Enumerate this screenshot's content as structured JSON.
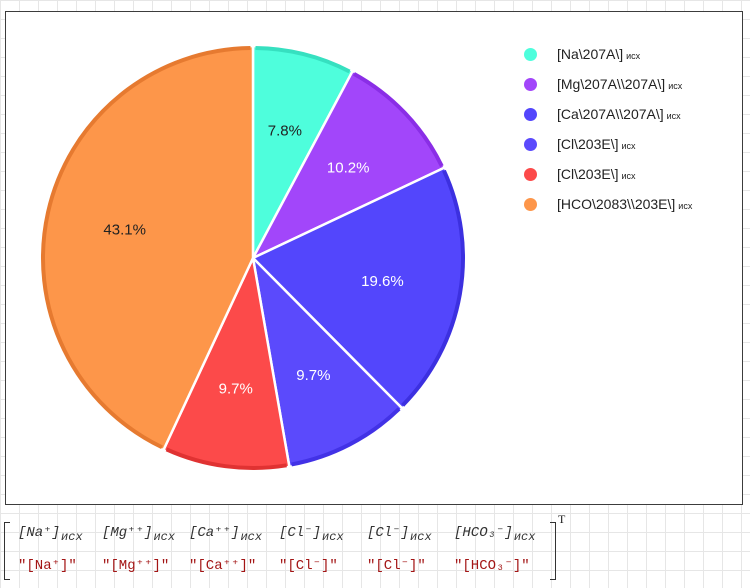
{
  "chart_data": {
    "type": "pie",
    "start": "12 o'clock",
    "direction": "clockwise",
    "slices": [
      {
        "legend": "[Na\\207A\\]",
        "sub": "исх",
        "value": 7.8,
        "label": "7.8%",
        "color": "#4efedc",
        "edge": "#36e0c0",
        "label_color": "#222222"
      },
      {
        "legend": "[Mg\\207A\\\\207A\\]",
        "sub": "исх",
        "value": 10.2,
        "label": "10.2%",
        "color": "#a246fa",
        "edge": "#8a2ee6",
        "label_color": "#ffffff"
      },
      {
        "legend": "[Ca\\207A\\\\207A\\]",
        "sub": "исх",
        "value": 19.6,
        "label": "19.6%",
        "color": "#5346fc",
        "edge": "#3c30e0",
        "label_color": "#ffffff"
      },
      {
        "legend": "[Cl\\203E\\]",
        "sub": "исх",
        "value": 9.7,
        "label": "9.7%",
        "color": "#5b4afc",
        "edge": "#4232e6",
        "label_color": "#ffffff"
      },
      {
        "legend": "[Cl\\203E\\]",
        "sub": "исх",
        "value": 9.7,
        "label": "9.7%",
        "color": "#fc4a4a",
        "edge": "#e03232",
        "label_color": "#ffffff"
      },
      {
        "legend": "[HCO\\2083\\\\203E\\]",
        "sub": "исх",
        "value": 43.1,
        "label": "43.1%",
        "color": "#fd964a",
        "edge": "#e67a30",
        "label_color": "#222222"
      }
    ]
  },
  "matrix": {
    "transpose": "T",
    "columns": [
      {
        "head": "[Na⁺]",
        "sub": "исх",
        "value": "\"[Na⁺]\""
      },
      {
        "head": "[Mg⁺⁺]",
        "sub": "исх",
        "value": "\"[Mg⁺⁺]\""
      },
      {
        "head": "[Ca⁺⁺]",
        "sub": "исх",
        "value": "\"[Ca⁺⁺]\""
      },
      {
        "head": "[Cl⁻]",
        "sub": "исх",
        "value": "\"[Cl⁻]\""
      },
      {
        "head": "[Cl⁻]",
        "sub": "исх",
        "value": "\"[Cl⁻]\""
      },
      {
        "head": "[HCO₃⁻]",
        "sub": "исх",
        "value": "\"[HCO₃⁻]\""
      }
    ]
  }
}
